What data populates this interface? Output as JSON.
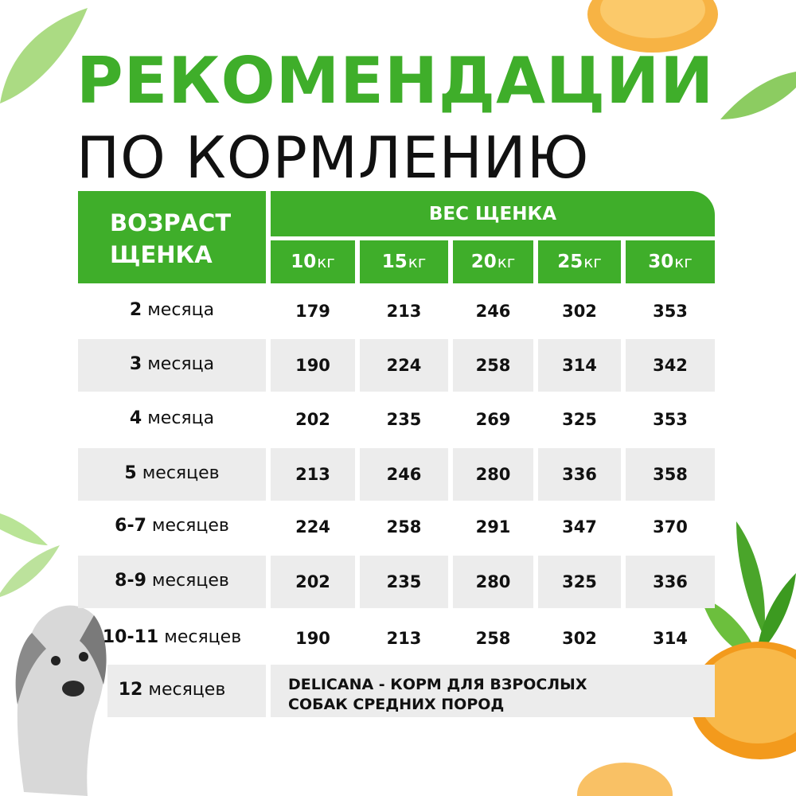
{
  "title": {
    "line1": "РЕКОМЕНДАЦИИ",
    "line2": "ПО КОРМЛЕНИЮ"
  },
  "table": {
    "age_header": [
      "ВОЗРАСТ",
      "ЩЕНКА"
    ],
    "weight_header": "ВЕС ЩЕНКА",
    "columns": [
      {
        "num": "10",
        "unit": "кг"
      },
      {
        "num": "15",
        "unit": "кг"
      },
      {
        "num": "20",
        "unit": "кг"
      },
      {
        "num": "25",
        "unit": "кг"
      },
      {
        "num": "30",
        "unit": "кг"
      }
    ],
    "rows": [
      {
        "age_num": "2",
        "age_unit": "месяца",
        "values": [
          "179",
          "213",
          "246",
          "302",
          "353"
        ]
      },
      {
        "age_num": "3",
        "age_unit": "месяца",
        "values": [
          "190",
          "224",
          "258",
          "314",
          "342"
        ]
      },
      {
        "age_num": "4",
        "age_unit": "месяца",
        "values": [
          "202",
          "235",
          "269",
          "325",
          "353"
        ]
      },
      {
        "age_num": "5",
        "age_unit": "месяцев",
        "values": [
          "213",
          "246",
          "280",
          "336",
          "358"
        ]
      },
      {
        "age_num": "6-7",
        "age_unit": "месяцев",
        "values": [
          "224",
          "258",
          "291",
          "347",
          "370"
        ]
      },
      {
        "age_num": "8-9",
        "age_unit": "месяцев",
        "values": [
          "202",
          "235",
          "280",
          "325",
          "336"
        ]
      },
      {
        "age_num": "10-11",
        "age_unit": "месяцев",
        "values": [
          "190",
          "213",
          "258",
          "302",
          "314"
        ]
      }
    ],
    "last_row": {
      "age_num": "12",
      "age_unit": "месяцев",
      "note": [
        "DELICANA - КОРМ ДЛЯ ВЗРОСЛЫХ",
        "СОБАК СРЕДНИХ ПОРОД"
      ]
    }
  },
  "colors": {
    "accent": "#3fae2a",
    "band": "#ececec",
    "text": "#111111"
  }
}
